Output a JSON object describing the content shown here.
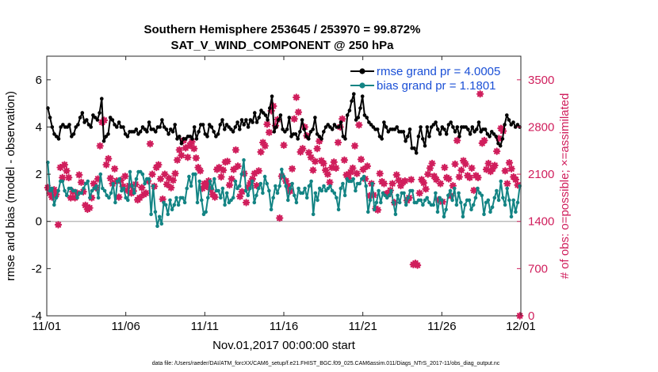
{
  "chart_data": {
    "type": "line",
    "title": "Southern Hemisphere 253645 / 253970 = 99.872%",
    "subtitle": "SAT_V_WIND_COMPONENT @ 250 hPa",
    "xlabel": "Nov.01,2017 00:00:00 start",
    "ylabel": "rmse and bias (model - observation)",
    "y2label": "# of obs: o=possible; ×=assimilated",
    "footnote": "data file: /Users/raeder/DAI/ATM_forcXX/CAM6_setup/f.e21.FHIST_BGC.f09_025.CAM6assim.011/Diags_NTrS_2017-11/obs_diag_output.nc",
    "xlim": [
      0,
      30
    ],
    "ylim": [
      -4,
      7
    ],
    "y2lim": [
      0,
      3850
    ],
    "x_ticks": [
      0,
      5,
      10,
      15,
      20,
      25,
      30
    ],
    "x_tick_labels": [
      "11/01",
      "11/06",
      "11/11",
      "11/16",
      "11/21",
      "11/26",
      "12/01"
    ],
    "y_ticks": [
      -4,
      -2,
      0,
      2,
      4,
      6
    ],
    "y_tick_labels": [
      "-4",
      "-2",
      "0",
      "2",
      "4",
      "6"
    ],
    "y2_ticks": [
      0,
      700,
      1400,
      2100,
      2800,
      3500
    ],
    "y2_tick_labels": [
      "0",
      "700",
      "1400",
      "2100",
      "2800",
      "3500"
    ],
    "legend_location": "top-right",
    "colors": {
      "rmse": "#000000",
      "bias": "#138484",
      "obs": "#d01e5c",
      "zero_line": "#b3b3b3"
    },
    "series": [
      {
        "name": "rmse grand pr = 4.0005",
        "color": "#000000",
        "values": [
          4.8,
          4.4,
          4.0,
          3.7,
          3.6,
          3.5,
          4.0,
          4.1,
          4.0,
          4.0,
          4.1,
          3.6,
          3.7,
          4.0,
          4.1,
          4.4,
          4.6,
          4.2,
          4.3,
          4.1,
          4.0,
          4.5,
          4.4,
          4.3,
          4.6,
          5.2,
          3.4,
          3.6,
          3.7,
          4.4,
          4.3,
          4.1,
          4.0,
          4.2,
          4.0,
          4.0,
          3.7,
          3.6,
          3.8,
          3.8,
          3.8,
          3.9,
          3.7,
          3.8,
          4.0,
          3.9,
          3.8,
          4.2,
          3.9,
          3.9,
          3.8,
          4.0,
          4.0,
          4.3,
          4.0,
          3.9,
          3.7,
          3.9,
          3.8,
          4.1,
          3.5,
          3.6,
          3.3,
          3.5,
          3.5,
          3.6,
          3.6,
          3.5,
          4.0,
          3.5,
          3.8,
          4.1,
          4.1,
          3.7,
          3.6,
          4.1,
          4.0,
          3.8,
          3.6,
          3.7,
          4.1,
          4.3,
          3.9,
          4.1,
          4.0,
          3.9,
          3.8,
          4.0,
          4.2,
          3.9,
          4.3,
          4.1,
          4.3,
          4.0,
          4.3,
          4.2,
          4.6,
          4.2,
          4.4,
          4.7,
          4.6,
          4.5,
          4.3,
          4.8,
          5.3,
          3.8,
          4.0,
          4.3,
          4.5,
          3.9,
          3.8,
          3.9,
          4.4,
          3.6,
          3.7,
          3.7,
          3.5,
          3.8,
          4.3,
          3.9,
          3.6,
          3.5,
          3.8,
          3.9,
          4.4,
          3.7,
          3.6,
          3.5,
          3.8,
          4.0,
          4.1,
          4.0,
          3.9,
          4.1,
          4.0,
          4.0,
          4.2,
          3.6,
          3.5,
          4.5,
          4.7,
          5.1,
          5.4,
          4.3,
          4.4,
          4.8,
          5.3,
          4.5,
          4.4,
          4.2,
          4.1,
          4.0,
          3.9,
          3.9,
          3.6,
          3.5,
          4.2,
          4.0,
          3.8,
          3.9,
          3.9,
          3.9,
          4.0,
          3.8,
          3.8,
          3.8,
          3.4,
          3.6,
          3.9,
          3.1,
          3.1,
          2.9,
          3.6,
          4.0,
          3.5,
          3.2,
          4.0,
          3.6,
          4.0,
          4.1,
          4.2,
          3.9,
          3.7,
          4.0,
          3.9,
          3.7,
          4.1,
          4.2,
          4.0,
          3.8,
          4.0,
          3.6,
          4.0,
          4.0,
          4.0,
          3.9,
          3.7,
          4.0,
          3.8,
          3.9,
          4.2,
          3.8,
          3.9,
          3.9,
          3.7,
          3.6,
          3.8,
          3.7,
          3.6,
          3.3,
          3.2,
          3.5,
          4.1,
          4.5,
          4.3,
          4.1,
          4.2,
          4.0,
          4.1,
          4.0
        ]
      },
      {
        "name": "bias grand pr = 1.1801",
        "color": "#138484",
        "values": [
          2.5,
          1.3,
          1.4,
          0.7,
          1.0,
          1.3,
          1.7,
          1.7,
          1.3,
          1.1,
          1.4,
          1.4,
          1.3,
          1.3,
          1.0,
          1.2,
          1.2,
          1.4,
          1.6,
          1.7,
          1.0,
          1.3,
          1.4,
          1.5,
          1.0,
          2.0,
          1.4,
          1.3,
          1.1,
          1.0,
          1.2,
          1.6,
          0.8,
          1.7,
          1.8,
          1.3,
          1.4,
          1.0,
          0.9,
          2.1,
          1.5,
          1.2,
          1.8,
          2.1,
          2.1,
          2.0,
          1.6,
          1.8,
          1.8,
          0.3,
          1.5,
          0.4,
          -0.2,
          0.2,
          -0.1,
          0.8,
          0.7,
          0.3,
          0.9,
          0.5,
          0.7,
          1.0,
          0.7,
          1.0,
          1.0,
          0.8,
          1.4,
          1.9,
          1.5,
          2.0,
          2.0,
          0.8,
          1.7,
          0.9,
          0.3,
          0.4,
          1.0,
          1.7,
          1.4,
          1.8,
          1.3,
          1.3,
          1.0,
          1.4,
          0.7,
          1.2,
          0.8,
          0.9,
          1.0,
          1.7,
          1.4,
          1.5,
          2.0,
          2.6,
          1.3,
          1.1,
          1.4,
          1.7,
          0.8,
          1.1,
          1.4,
          1.6,
          1.2,
          1.9,
          1.6,
          1.3,
          0.5,
          1.0,
          1.5,
          1.2,
          1.5,
          2.2,
          1.9,
          1.5,
          0.9,
          1.4,
          1.6,
          1.1,
          0.8,
          1.4,
          1.2,
          1.2,
          1.4,
          1.0,
          1.5,
          1.7,
          0.3,
          1.2,
          0.9,
          1.4,
          1.3,
          1.5,
          1.3,
          1.4,
          1.5,
          1.3,
          1.2,
          1.0,
          0.5,
          1.4,
          1.6,
          1.1,
          1.8,
          1.7,
          1.7,
          1.8,
          1.3,
          1.6,
          1.6,
          1.8,
          1.9,
          1.5,
          0.4,
          0.9,
          1.6,
          0.5,
          0.8,
          1.3,
          0.8,
          1.2,
          1.1,
          1.0,
          1.1,
          1.3,
          0.8,
          0.3,
          1.1,
          0.8,
          1.2,
          1.2,
          0.7,
          1.0,
          1.3,
          1.3,
          0.8,
          0.8,
          0.9,
          0.9,
          0.7,
          0.9,
          1.0,
          0.8,
          0.7,
          0.7,
          1.2,
          0.4,
          1.0,
          0.9,
          0.2,
          0.5,
          1.1,
          1.3,
          0.9,
          1.4,
          0.7,
          1.2,
          0.8,
          0.2,
          0.7,
          0.9,
          0.9,
          0.5,
          0.7,
          1.0,
          1.4,
          1.2,
          1.1,
          0.3,
          0.8,
          0.9,
          0.4,
          0.6,
          1.0,
          1.3,
          0.9,
          1.7,
          1.0,
          0.7,
          1.4,
          0.9,
          0.2,
          0.9,
          0.4,
          0.8,
          1.5
        ]
      }
    ],
    "obs_assimilated": {
      "name": "# of obs (assimilated)",
      "color": "#d01e5c",
      "values": [
        1900,
        1820,
        1760,
        1870,
        1800,
        1350,
        2200,
        2050,
        2240,
        2150,
        2050,
        1750,
        1840,
        1750,
        1820,
        2090,
        1980,
        1840,
        1640,
        1580,
        1600,
        1750,
        1960,
        1900,
        2030,
        2520,
        2870,
        2900,
        2240,
        2330,
        2040,
        1960,
        2180,
        2000,
        1760,
        2010,
        1920,
        2070,
        1860,
        1930,
        1820,
        1850,
        1950,
        1720,
        1750,
        1900,
        1800,
        1820,
        2000,
        2550,
        2100,
        1920,
        2200,
        2240,
        2030,
        1730,
        2100,
        1950,
        2040,
        1900,
        2010,
        2110,
        2310,
        2460,
        2380,
        2600,
        2490,
        2350,
        2530,
        2580,
        2480,
        2340,
        2200,
        2150,
        1890,
        1960,
        1920,
        2000,
        1870,
        1800,
        1760,
        2170,
        2200,
        2060,
        2160,
        2280,
        2290,
        1940,
        2030,
        2170,
        2460,
        2220,
        1770,
        1840,
        2110,
        1680,
        1910,
        1970,
        2030,
        2110,
        1930,
        2150,
        2430,
        2570,
        2520,
        2840,
        2720,
        3040,
        3110,
        2820,
        2910,
        1450,
        2070,
        2530,
        2000,
        1930,
        1850,
        2180,
        2920,
        3240,
        3020,
        2430,
        2480,
        2800,
        2670,
        2420,
        2350,
        2160,
        2290,
        2480,
        2590,
        2300,
        2260,
        2160,
        2100,
        1980,
        2200,
        2280,
        2190,
        2570,
        2800,
        2920,
        2310,
        2090,
        2040,
        2130,
        2190,
        2520,
        2110,
        2830,
        2320,
        2170,
        2030,
        2220,
        1780,
        1960,
        1790,
        1590,
        1570,
        2110,
        1990,
        1960,
        1810,
        1800,
        1860,
        1960,
        1680,
        2090,
        2010,
        1930,
        1980,
        2000,
        1710,
        1750,
        2020,
        760,
        780,
        750,
        1820,
        2020,
        1970,
        1880,
        2100,
        2190,
        2260,
        2070,
        2020,
        1720,
        1960,
        1690,
        2200,
        2050,
        2030,
        1780,
        1930,
        2250,
        2600,
        2060,
        2160,
        2300,
        2250,
        2080,
        2050,
        2190,
        1860,
        2080,
        2050,
        3290,
        2560,
        2600,
        2170,
        2260,
        2140,
        2180,
        2230,
        2440,
        2630,
        2780,
        2740,
        2150,
        1960,
        2270,
        2180,
        2060,
        2020,
        1940,
        0
      ]
    }
  }
}
